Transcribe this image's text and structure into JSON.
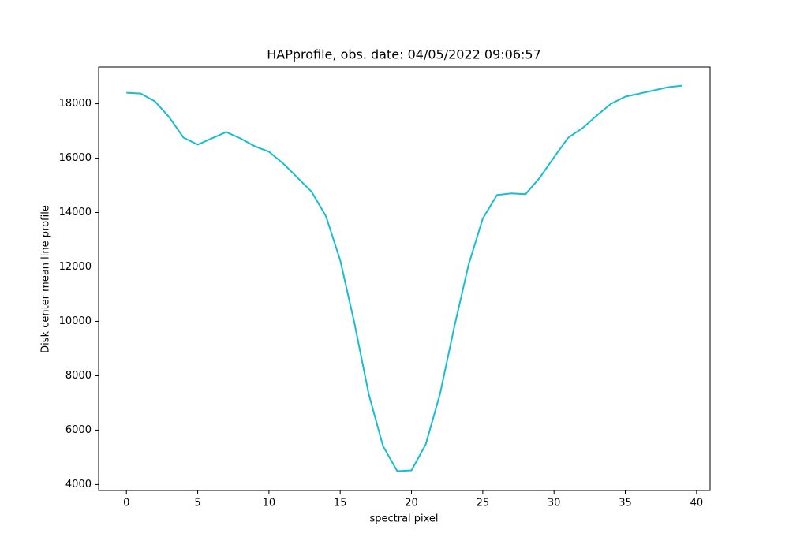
{
  "chart_data": {
    "type": "line",
    "title": "HAPprofile, obs. date: 04/05/2022 09:06:57",
    "x_label": "spectral pixel",
    "y_label": "Disk center mean line profile",
    "x": [
      0,
      1,
      2,
      3,
      4,
      5,
      6,
      7,
      8,
      9,
      10,
      11,
      12,
      13,
      14,
      15,
      16,
      17,
      18,
      19,
      20,
      21,
      22,
      23,
      24,
      25,
      26,
      27,
      28,
      29,
      30,
      31,
      32,
      33,
      34,
      35,
      36,
      37,
      38,
      39
    ],
    "series": [
      {
        "name": "HAPprofile",
        "color": "#17becf",
        "values": [
          18405,
          18376,
          18087,
          17508,
          16756,
          16496,
          16727,
          16959,
          16727,
          16438,
          16236,
          15802,
          15281,
          14760,
          13863,
          12244,
          9930,
          7326,
          5417,
          4491,
          4520,
          5475,
          7326,
          9785,
          12070,
          13777,
          14645,
          14702,
          14673,
          15281,
          16033,
          16756,
          17103,
          17566,
          18000,
          18260,
          18376,
          18492,
          18607,
          18665
        ]
      }
    ],
    "xlim": [
      -1.95,
      40.95
    ],
    "xticks": [
      0,
      5,
      10,
      15,
      20,
      25,
      30,
      35,
      40
    ],
    "ylim": [
      3780,
      19350
    ],
    "yticks": [
      4000,
      6000,
      8000,
      10000,
      12000,
      14000,
      16000,
      18000
    ],
    "grid": false
  }
}
